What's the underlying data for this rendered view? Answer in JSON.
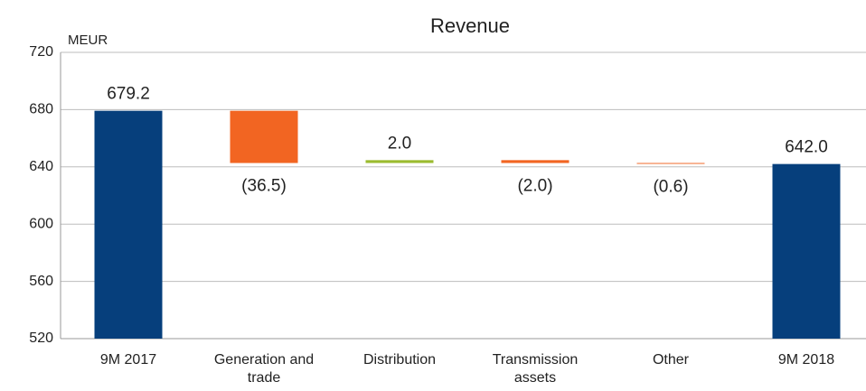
{
  "chart_data": {
    "type": "waterfall",
    "title": "Revenue",
    "y_label": "MEUR",
    "categories": [
      "9M 2017",
      "Generation and trade",
      "Distribution",
      "Transmission assets",
      "Other",
      "9M 2018"
    ],
    "values": [
      679.2,
      -36.5,
      2.0,
      -2.0,
      -0.6,
      642.0
    ],
    "value_labels": [
      "679.2",
      "(36.5)",
      "2.0",
      "(2.0)",
      "(0.6)",
      "642.0"
    ],
    "measure": [
      "absolute",
      "relative",
      "relative",
      "relative",
      "relative",
      "absolute"
    ],
    "colors": [
      "#063f7c",
      "#f26522",
      "#9bbb2f",
      "#f26522",
      "#f26522",
      "#063f7c"
    ],
    "ylim": [
      520,
      720
    ],
    "yticks": [
      520,
      560,
      600,
      640,
      680,
      720
    ],
    "grid": true
  }
}
